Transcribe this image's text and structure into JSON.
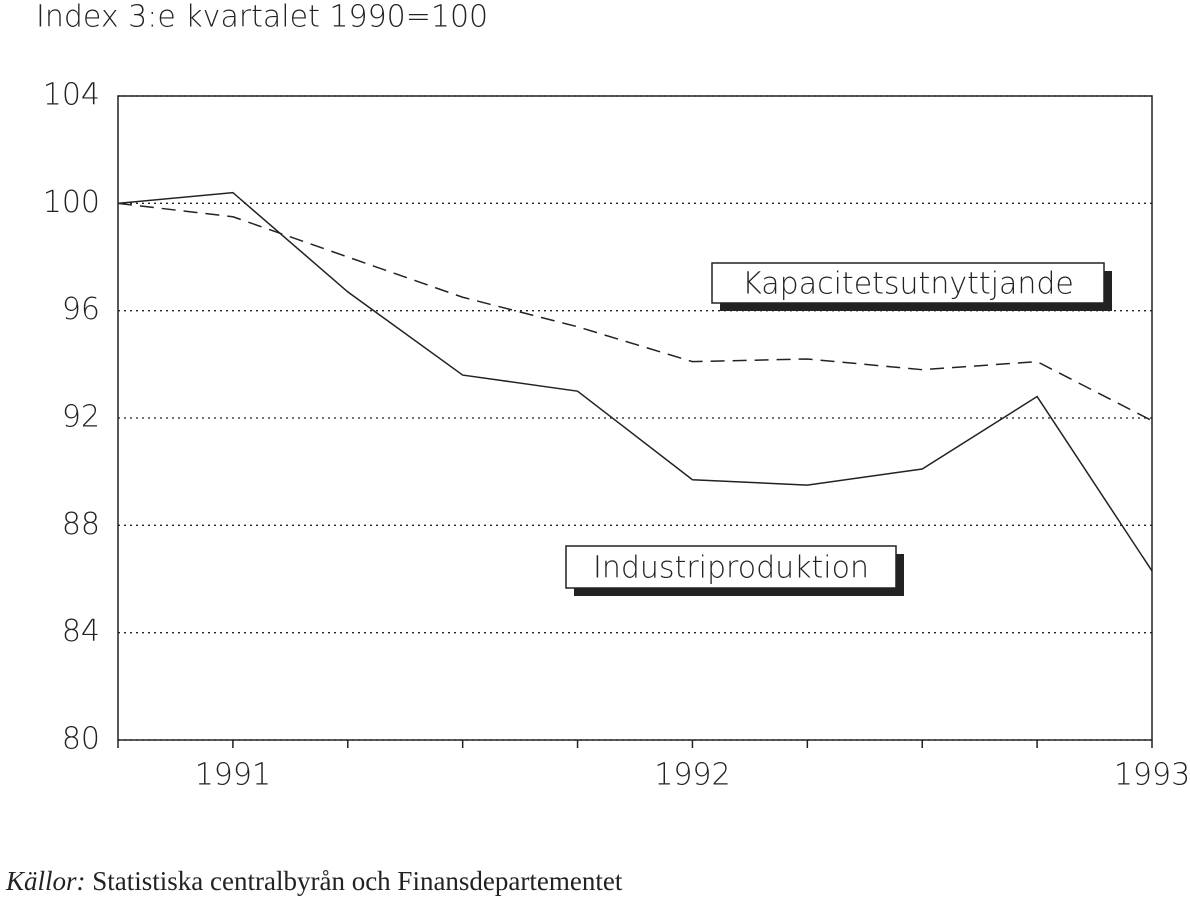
{
  "chart_data": {
    "type": "line",
    "title": "Index 3:e kvartalet 1990=100",
    "categories": [
      null,
      "1991",
      null,
      null,
      null,
      "1992",
      null,
      null,
      null,
      "1993"
    ],
    "series": [
      {
        "name": "Industriproduktion",
        "color": "#222222",
        "dashed": false,
        "values": [
          100,
          100.4,
          96.7,
          93.6,
          93.0,
          89.7,
          89.5,
          90.1,
          92.8,
          86.3
        ]
      },
      {
        "name": "Kapacitetsutnyttjande",
        "color": "#222222",
        "dashed": true,
        "values": [
          100,
          99.5,
          98.0,
          96.5,
          95.4,
          94.1,
          94.2,
          93.8,
          94.1,
          91.9
        ]
      }
    ],
    "ylim": [
      80,
      104
    ],
    "yticks": [
      80,
      84,
      88,
      92,
      96,
      100,
      104
    ],
    "grid": true
  },
  "footer": {
    "label": "Källor:",
    "text": "Statistiska centralbyrån och Finansdepartementet"
  }
}
